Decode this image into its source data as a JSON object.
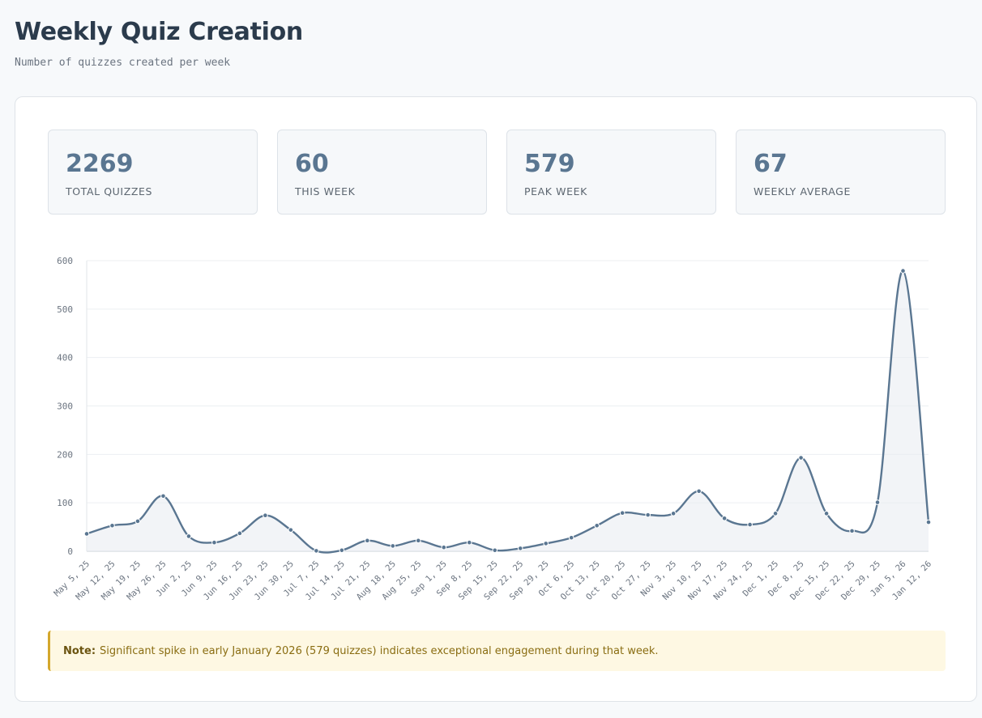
{
  "header": {
    "title": "Weekly Quiz Creation",
    "subtitle": "Number of quizzes created per week"
  },
  "stats": [
    {
      "value": "2269",
      "label": "TOTAL QUIZZES"
    },
    {
      "value": "60",
      "label": "THIS WEEK"
    },
    {
      "value": "579",
      "label": "PEAK WEEK"
    },
    {
      "value": "67",
      "label": "WEEKLY AVERAGE"
    }
  ],
  "note": {
    "label": "Note:",
    "text": "Significant spike in early January 2026 (579 quizzes) indicates exceptional engagement during that week."
  },
  "colors": {
    "line": "#5a7691",
    "area": "#e9edf1",
    "grid": "#eceff2",
    "axis_text": "#6b7480"
  },
  "chart_data": {
    "type": "area",
    "title": "",
    "xlabel": "",
    "ylabel": "",
    "ylim": [
      0,
      600
    ],
    "yticks": [
      0,
      100,
      200,
      300,
      400,
      500,
      600
    ],
    "grid": true,
    "categories": [
      "May 5, 25",
      "May 12, 25",
      "May 19, 25",
      "May 26, 25",
      "Jun 2, 25",
      "Jun 9, 25",
      "Jun 16, 25",
      "Jun 23, 25",
      "Jun 30, 25",
      "Jul 7, 25",
      "Jul 14, 25",
      "Jul 21, 25",
      "Aug 18, 25",
      "Aug 25, 25",
      "Sep 1, 25",
      "Sep 8, 25",
      "Sep 15, 25",
      "Sep 22, 25",
      "Sep 29, 25",
      "Oct 6, 25",
      "Oct 13, 25",
      "Oct 20, 25",
      "Oct 27, 25",
      "Nov 3, 25",
      "Nov 10, 25",
      "Nov 17, 25",
      "Nov 24, 25",
      "Dec 1, 25",
      "Dec 8, 25",
      "Dec 15, 25",
      "Dec 22, 25",
      "Dec 29, 25",
      "Jan 5, 26",
      "Jan 12, 26"
    ],
    "series": [
      {
        "values": [
          36,
          53,
          62,
          114,
          31,
          18,
          37,
          74,
          44,
          1,
          2,
          22,
          11,
          22,
          8,
          18,
          2,
          6,
          16,
          28,
          53,
          79,
          75,
          78,
          124,
          68,
          55,
          78,
          193,
          78,
          42,
          101,
          579,
          60
        ]
      }
    ]
  }
}
